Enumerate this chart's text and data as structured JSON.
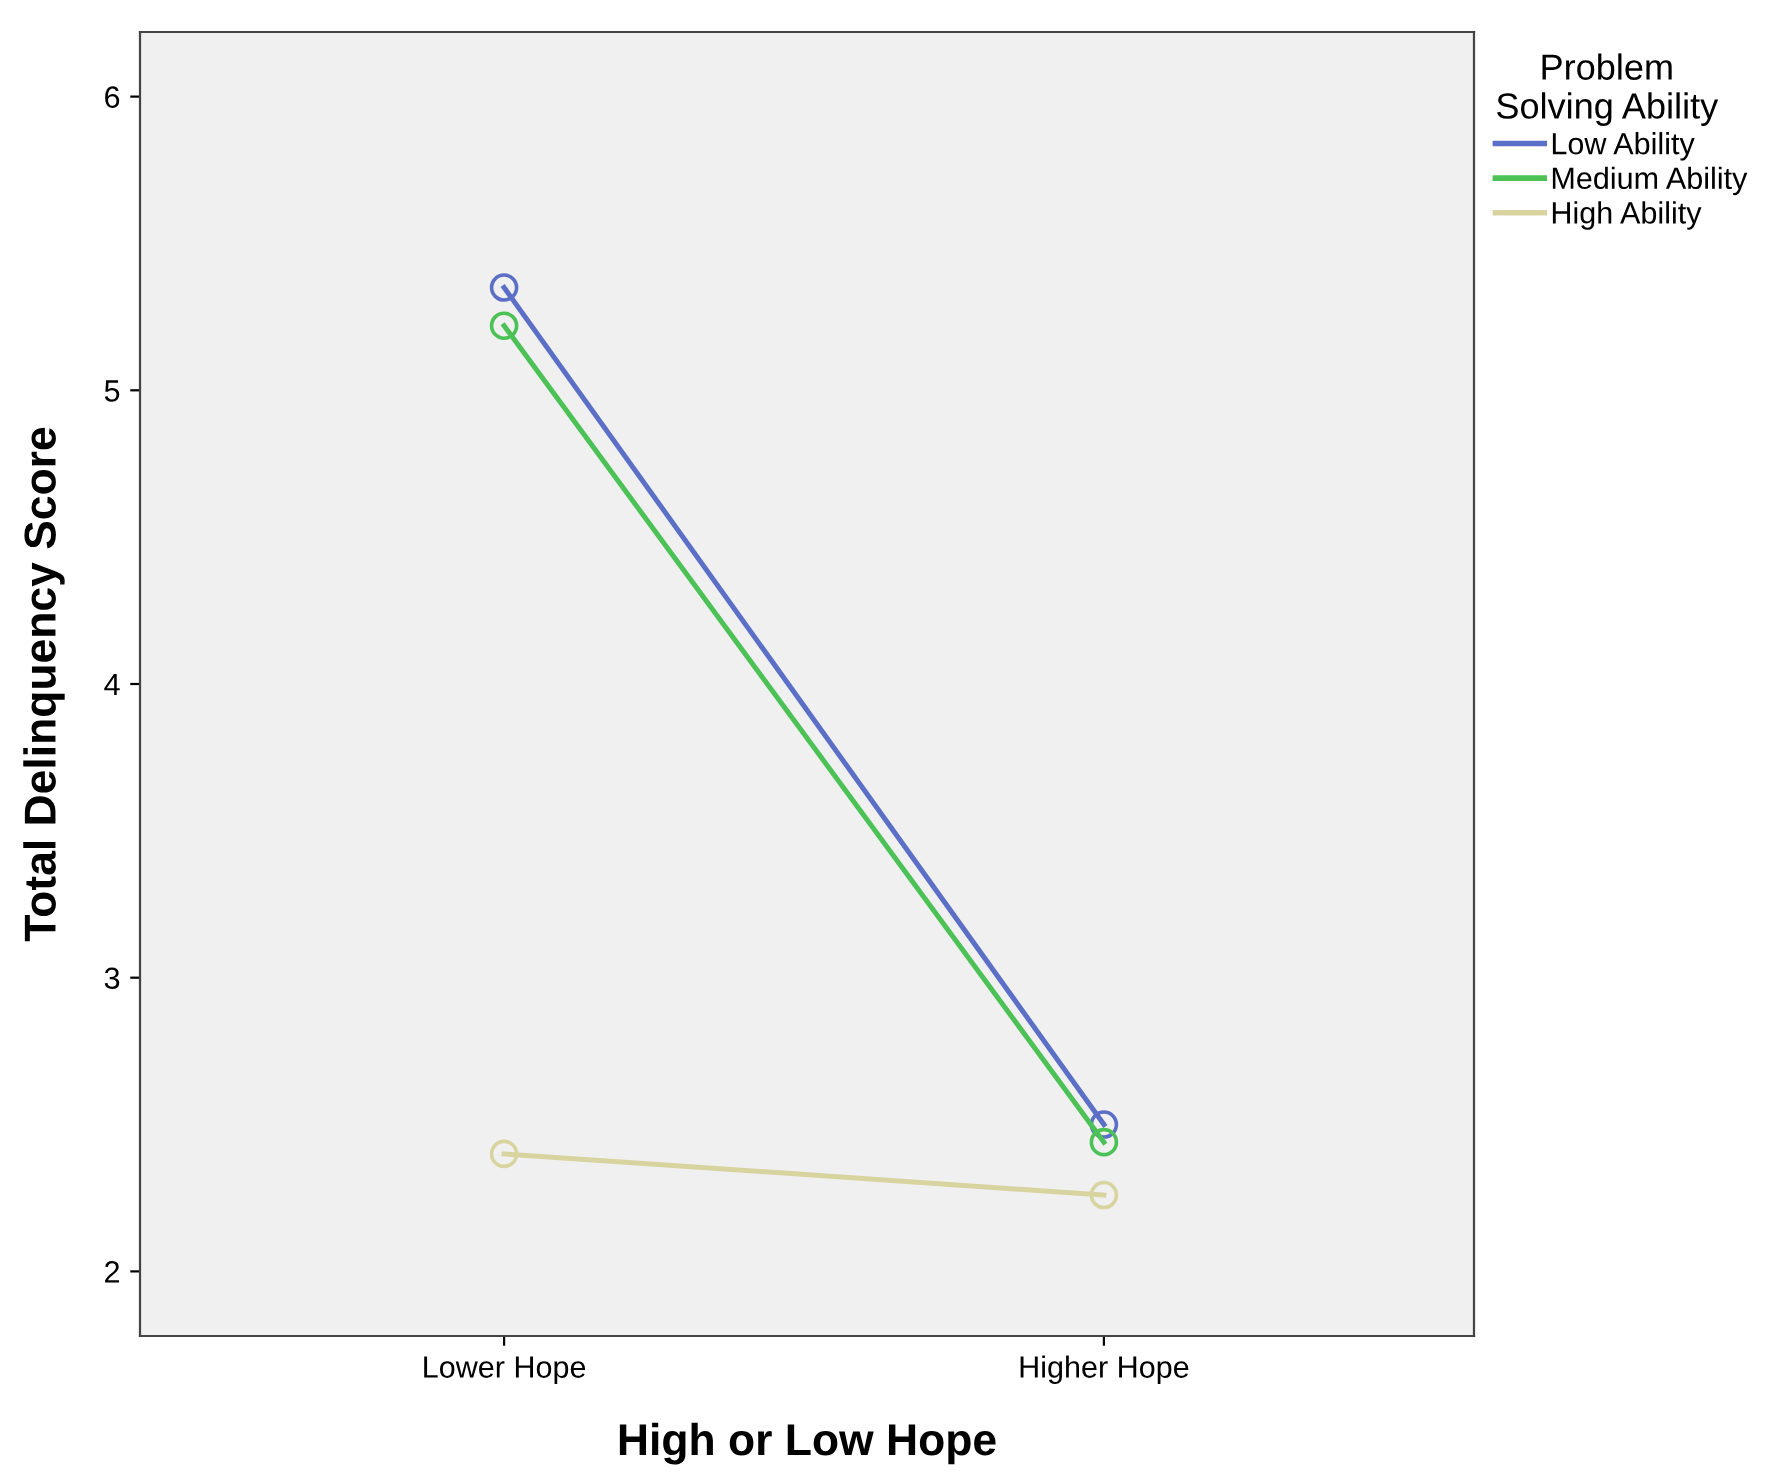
{
  "chart_data": {
    "type": "line",
    "xlabel": "High or Low Hope",
    "ylabel": "Total Delinquency Score",
    "legend_title": "Problem\nSolving Ability",
    "categories": [
      "Lower Hope",
      "Higher Hope"
    ],
    "series": [
      {
        "name": "Low Ability",
        "color": "#5b6fc6",
        "values": [
          5.35,
          2.5
        ]
      },
      {
        "name": "Medium Ability",
        "color": "#4cc256",
        "values": [
          5.22,
          2.44
        ]
      },
      {
        "name": "High Ability",
        "color": "#d8d4a0",
        "values": [
          2.4,
          2.26
        ]
      }
    ],
    "ylim": [
      1.78,
      6.22
    ],
    "yticks": [
      2,
      3,
      4,
      5,
      6
    ],
    "grid": false,
    "legend": "right",
    "marker": "circle",
    "line_style": "solid"
  }
}
